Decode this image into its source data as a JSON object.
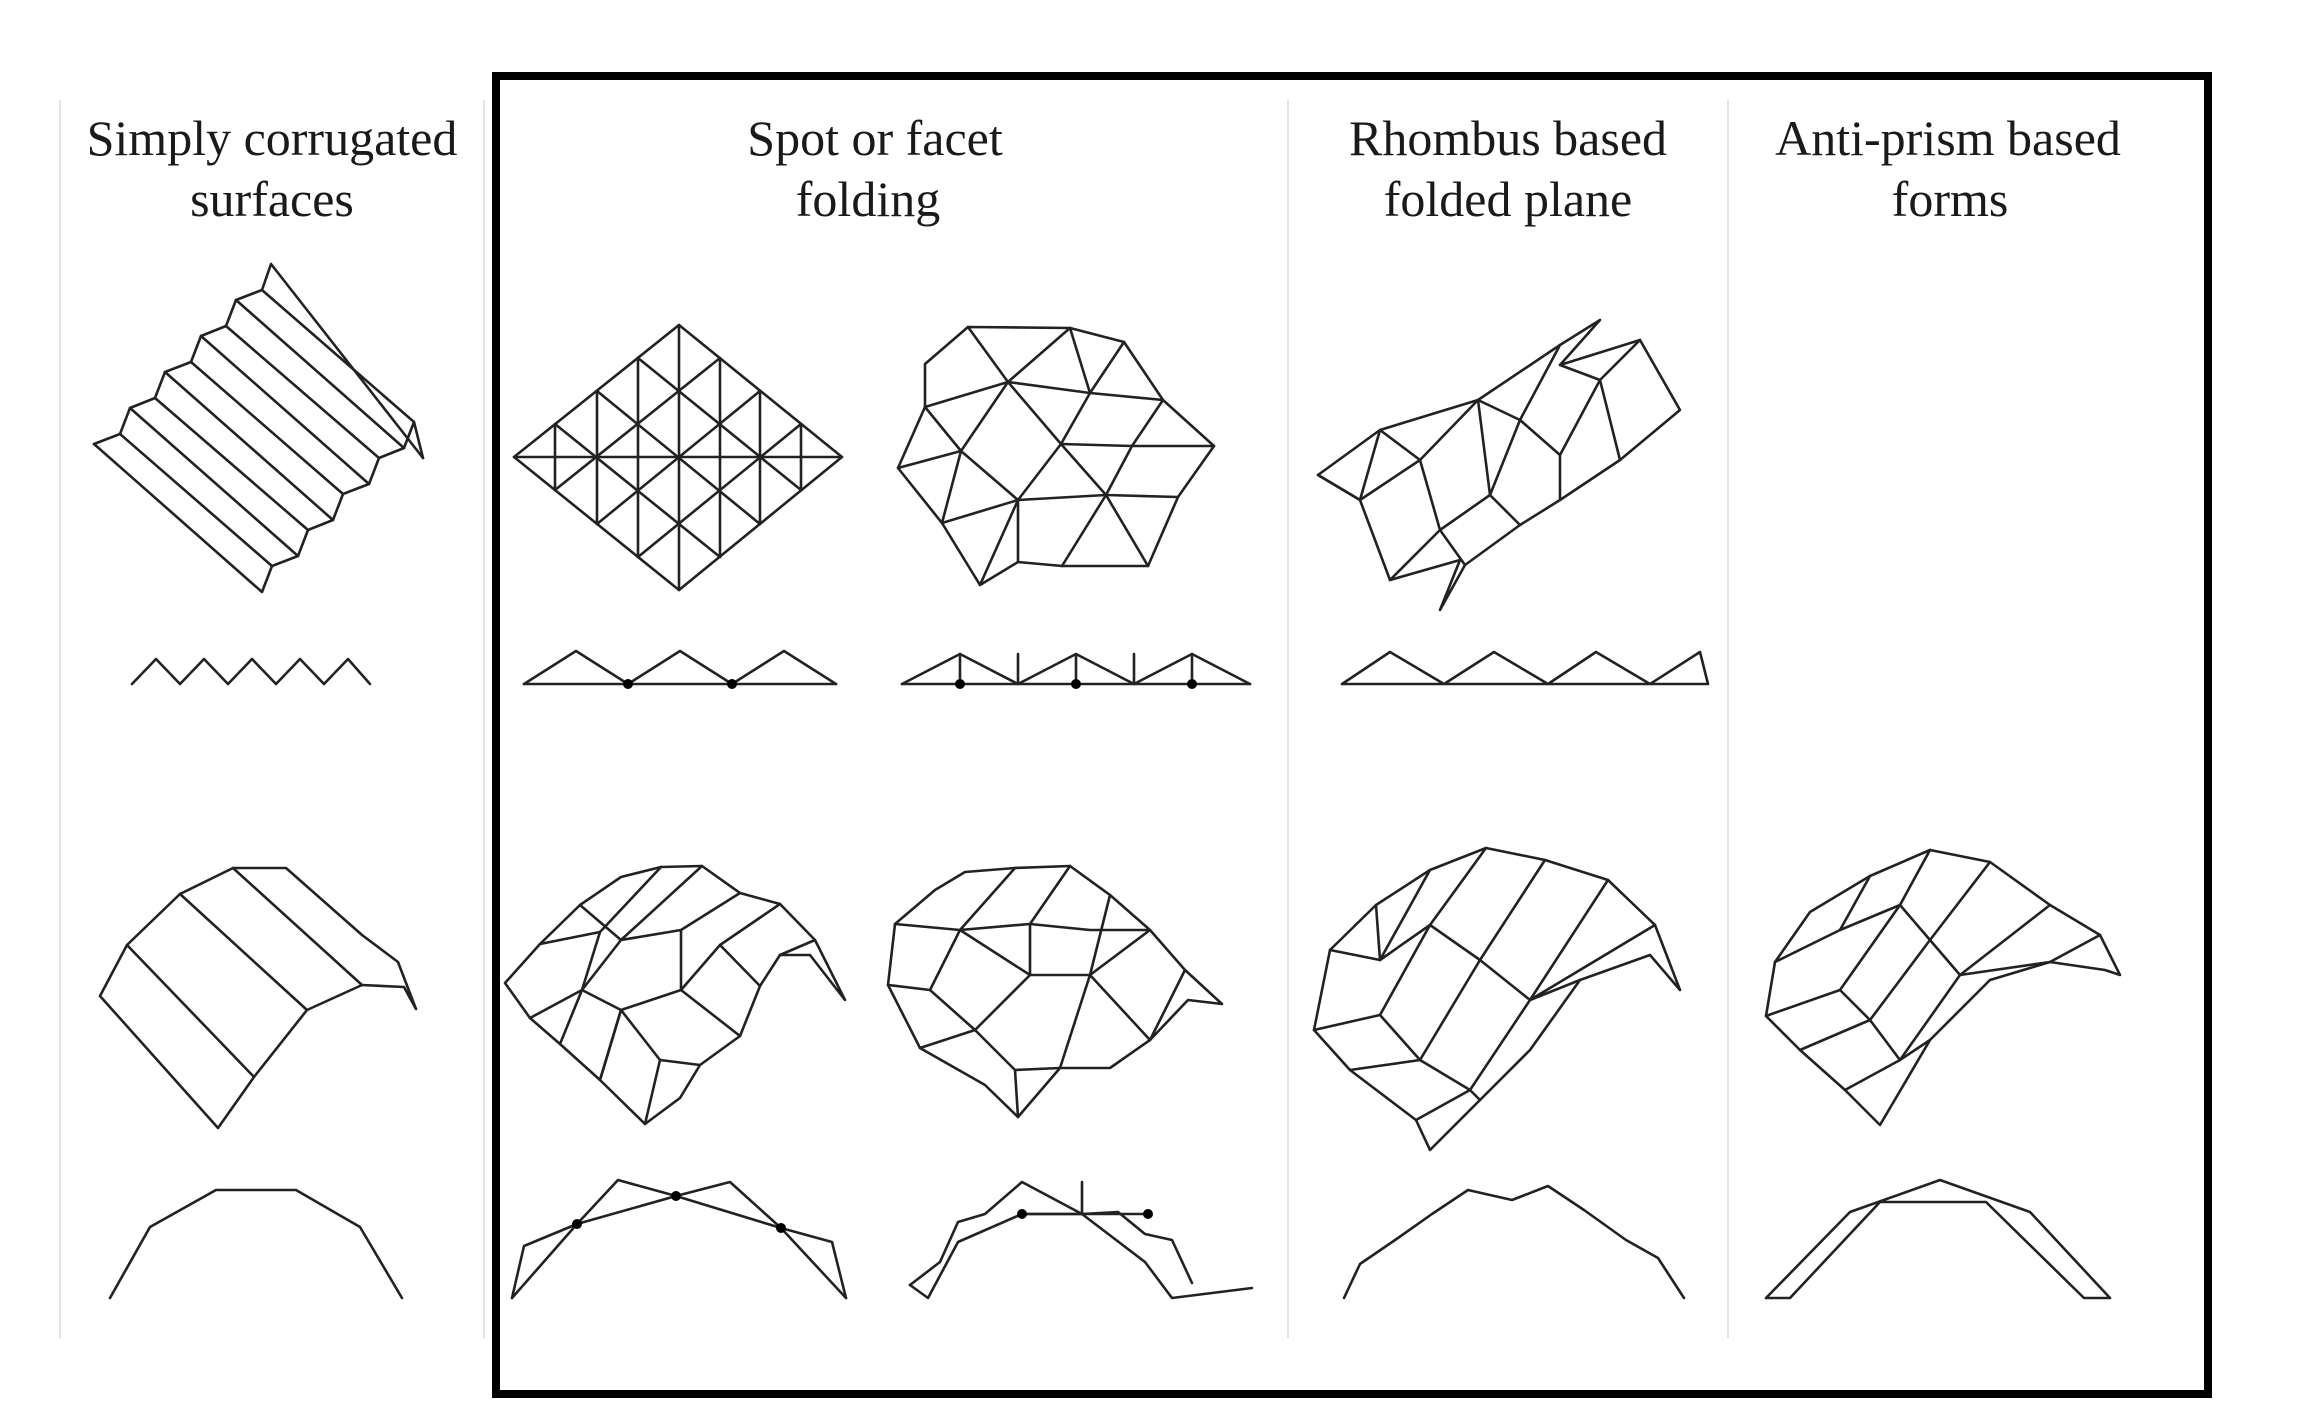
{
  "columns": [
    {
      "id": "corrugated",
      "title_lines": [
        "Simply corrugated",
        "surfaces"
      ]
    },
    {
      "id": "spot",
      "title_lines": [
        "Spot or facet",
        "folding"
      ]
    },
    {
      "id": "rhombus",
      "title_lines": [
        "Rhombus based",
        "folded plane"
      ]
    },
    {
      "id": "antiprism",
      "title_lines": [
        "Anti-prism based",
        "forms"
      ]
    }
  ],
  "colors": {
    "line": "#222222",
    "frame": "#000000",
    "separator": "#e4e4e4",
    "background": "#ffffff"
  }
}
